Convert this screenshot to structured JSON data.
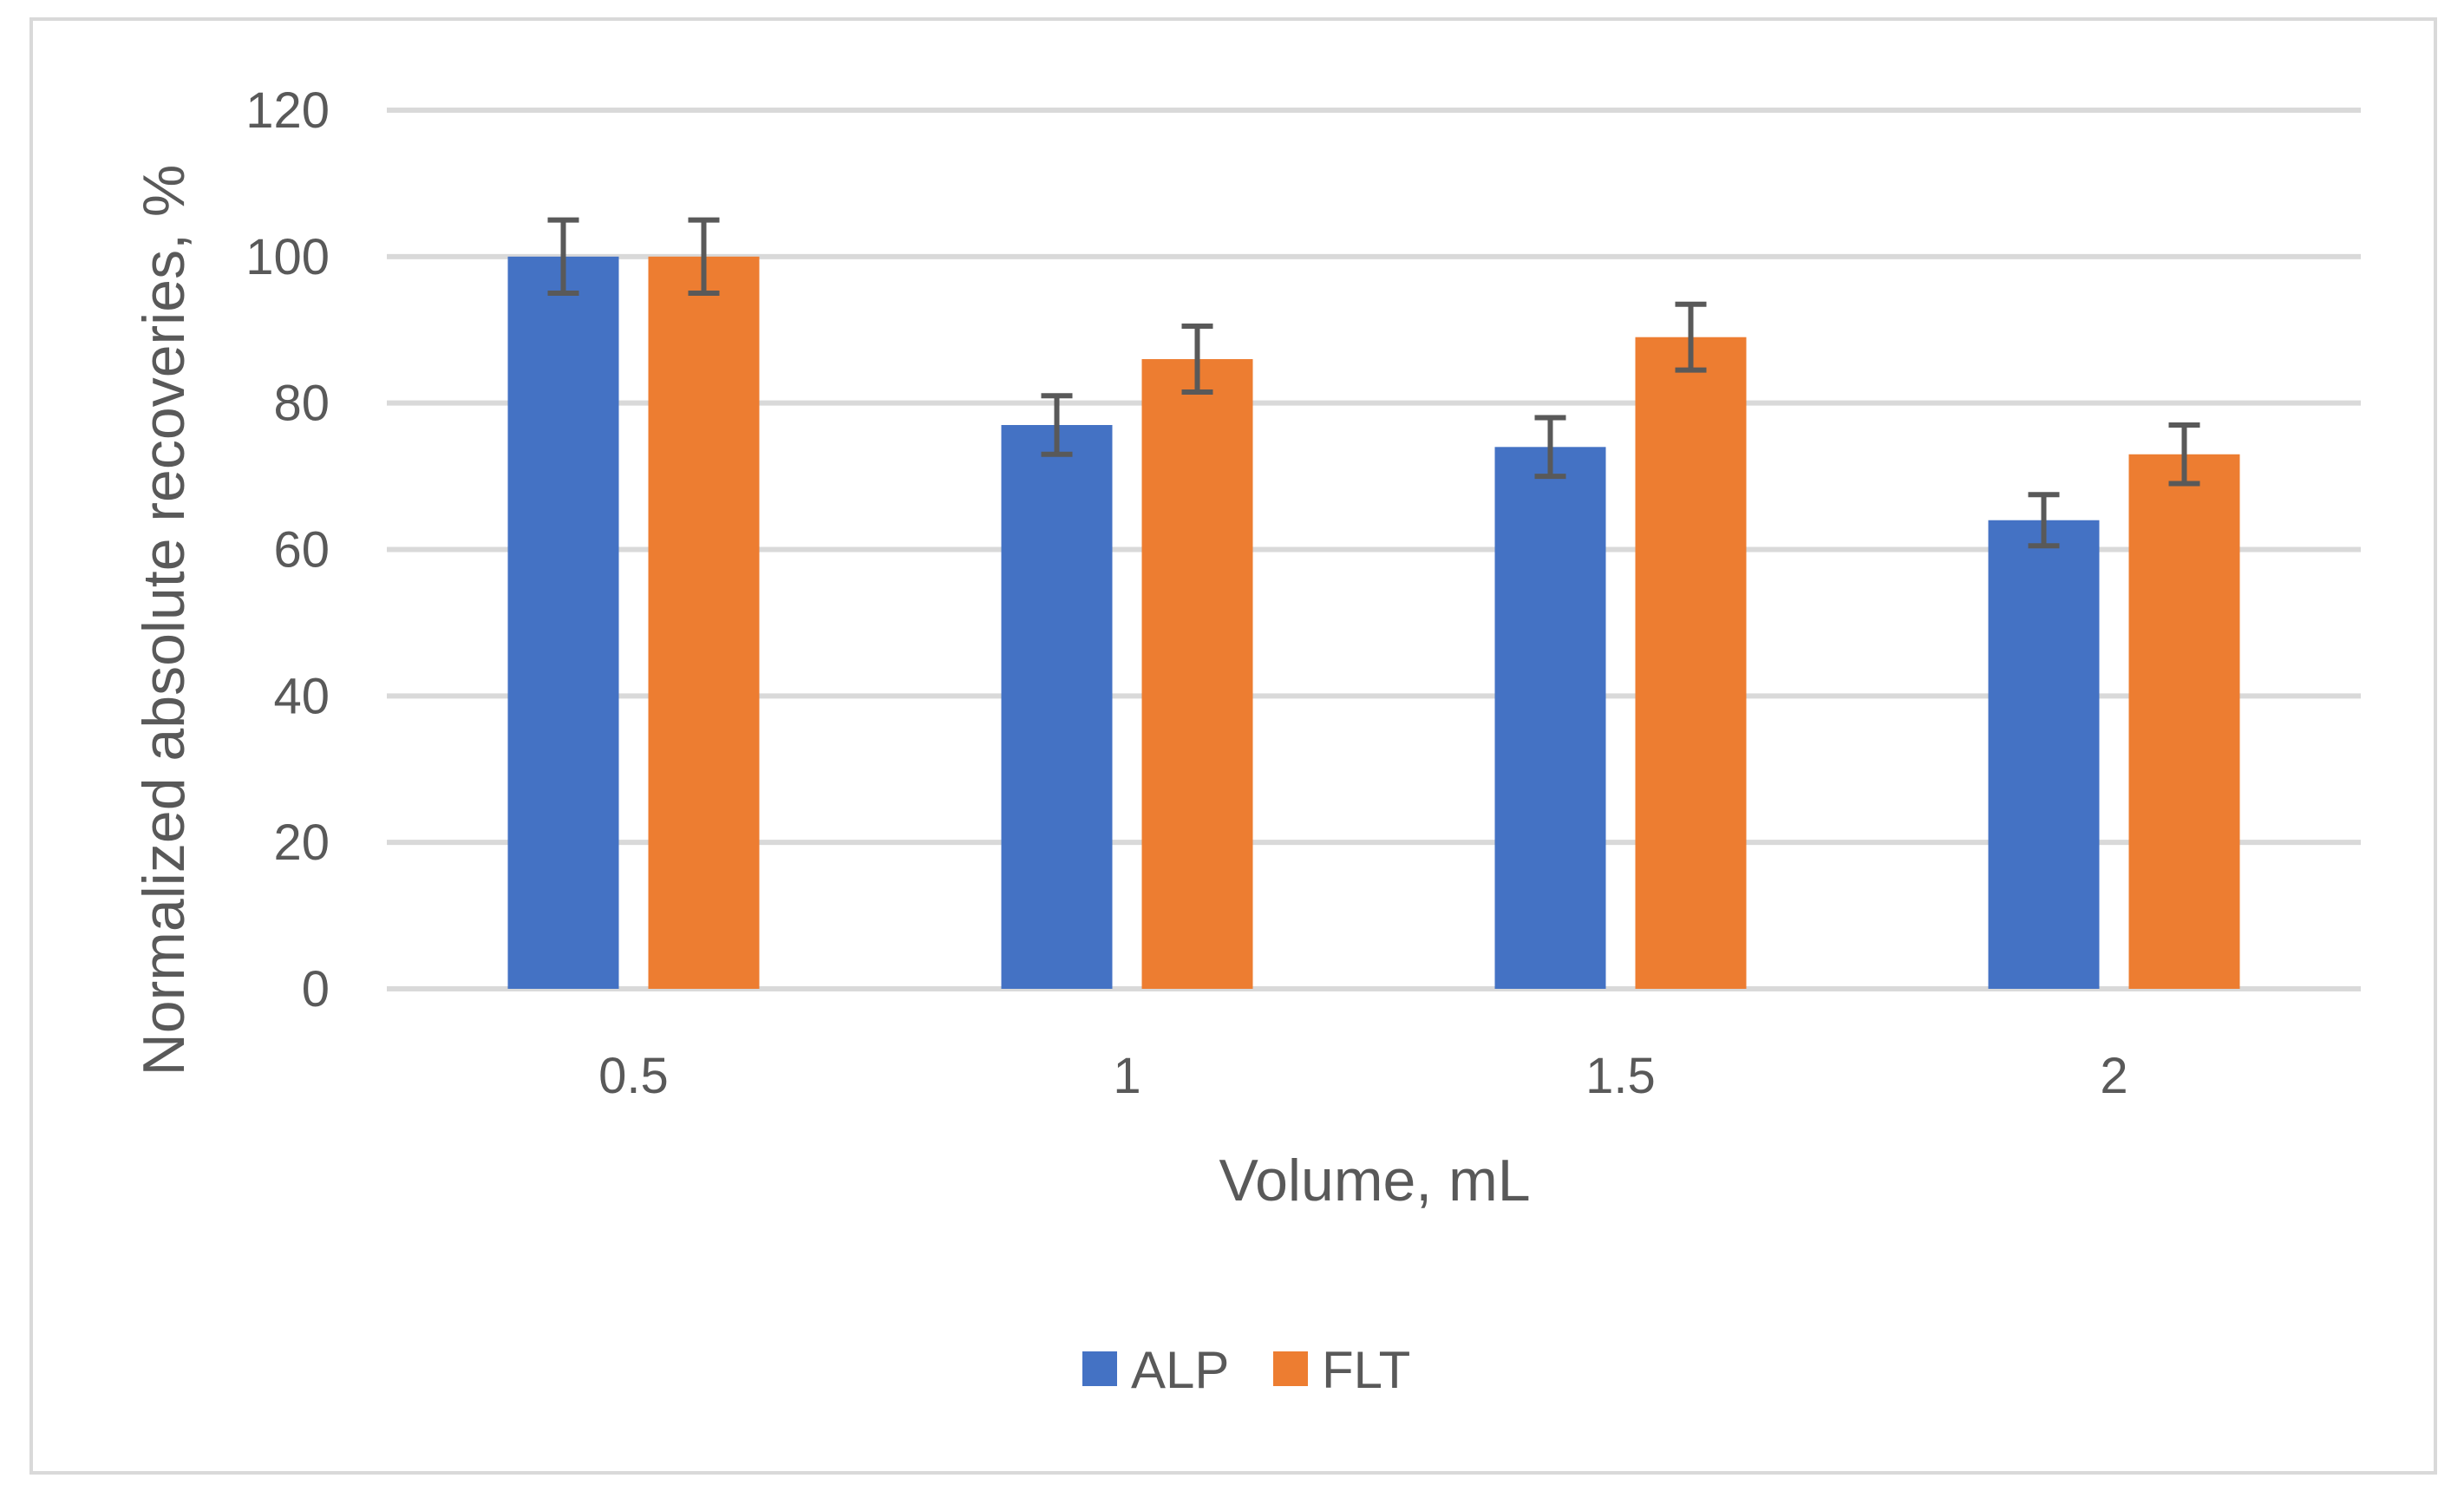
{
  "chart_data": {
    "type": "bar",
    "title": "",
    "xlabel": "Volume, mL",
    "ylabel": "Normalized absolute recoveries, %",
    "categories": [
      "0.5",
      "1",
      "1.5",
      "2"
    ],
    "series": [
      {
        "name": "ALP",
        "color": "#4472c4",
        "values": [
          100,
          77,
          74,
          64
        ],
        "errors": [
          5,
          4,
          4,
          3.5
        ]
      },
      {
        "name": "FLT",
        "color": "#ed7d31",
        "values": [
          100,
          86,
          89,
          73
        ],
        "errors": [
          5,
          4.5,
          4.5,
          4
        ]
      }
    ],
    "ylim": [
      0,
      120
    ],
    "yticks": [
      0,
      20,
      40,
      60,
      80,
      100,
      120
    ],
    "ytick_labels": [
      "0",
      "20",
      "40",
      "60",
      "80",
      "100",
      "120"
    ],
    "grid": true,
    "legend_position": "bottom-center"
  }
}
